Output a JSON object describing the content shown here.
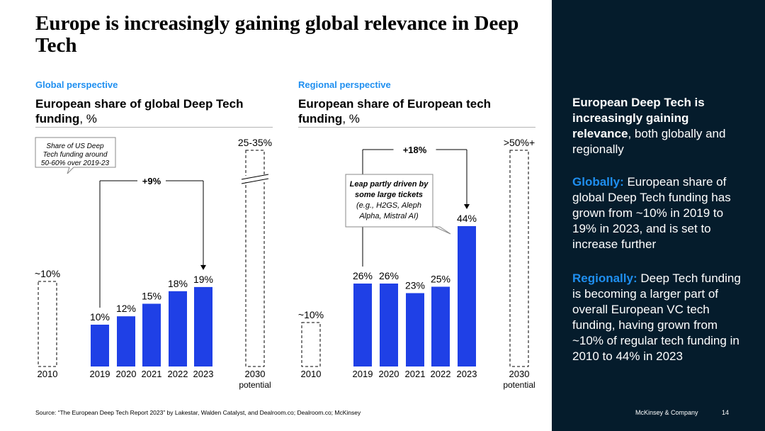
{
  "title": "Europe is increasingly gaining global relevance in Deep Tech",
  "left_panel": {
    "label": "Global perspective",
    "chart_title_main": "European share of global Deep Tech funding",
    "chart_title_unit": ", %",
    "callout": [
      "Share of US Deep",
      "Tech funding around",
      "50-60% over 2019-23"
    ],
    "growth_label": "+9%"
  },
  "right_panel": {
    "label": "Regional perspective",
    "chart_title_main": "European share of European tech funding",
    "chart_title_unit": ", %",
    "callout": [
      "Leap partly driven by",
      "some large tickets",
      "(e.g., H2GS, Aleph",
      "Alpha, Mistral AI)"
    ],
    "growth_label": "+18%"
  },
  "chart_data": [
    {
      "type": "bar",
      "title": "European share of global Deep Tech funding, %",
      "categories": [
        "2010",
        "2019",
        "2020",
        "2021",
        "2022",
        "2023",
        "2030\npotential"
      ],
      "values": [
        10,
        10,
        12,
        15,
        18,
        19,
        35
      ],
      "labels": [
        "~10%",
        "10%",
        "12%",
        "15%",
        "18%",
        "19%",
        "25-35%"
      ],
      "styles": [
        "dashed",
        "solid",
        "solid",
        "solid",
        "solid",
        "solid",
        "dashed-broken"
      ],
      "annotation": {
        "text": "+9%",
        "from": "2019",
        "to": "2023"
      },
      "ylim": [
        0,
        50
      ],
      "color": "#1f40e6"
    },
    {
      "type": "bar",
      "title": "European share of European tech funding, %",
      "categories": [
        "2010",
        "2019",
        "2020",
        "2021",
        "2022",
        "2023",
        "2030\npotential"
      ],
      "values": [
        10,
        26,
        26,
        23,
        25,
        44,
        50
      ],
      "labels": [
        "~10%",
        "26%",
        "26%",
        "23%",
        "25%",
        "44%",
        ">50%+"
      ],
      "styles": [
        "dashed",
        "solid",
        "solid",
        "solid",
        "solid",
        "solid",
        "dashed"
      ],
      "annotation": {
        "text": "+18%",
        "from": "2019",
        "to": "2023"
      },
      "ylim": [
        0,
        50
      ],
      "color": "#1f40e6"
    }
  ],
  "sidebar": {
    "heading_bold": "European Deep Tech is increasingly gaining relevance",
    "heading_rest": ", both globally and regionally",
    "globally_label": "Globally:",
    "globally_text": " European share of global Deep Tech funding has grown from ~10% in 2019 to 19% in 2023, and is set to increase further",
    "regionally_label": "Regionally:",
    "regionally_text": " Deep Tech funding is becoming a larger part of overall European VC tech funding, having grown from ~10% of regular tech funding in 2010 to 44% in 2023"
  },
  "footer": {
    "source": "Source: “The European Deep Tech Report 2023” by Lakestar, Walden Catalyst, and Dealroom.co; Dealroom.co; McKinsey",
    "brand": "McKinsey & Company",
    "page": "14"
  }
}
